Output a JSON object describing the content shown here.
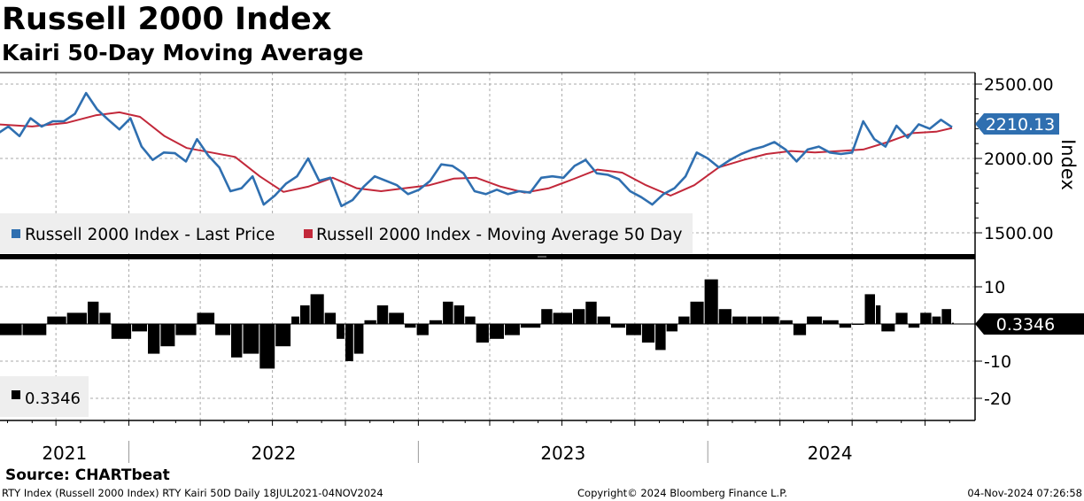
{
  "header": {
    "title": "Russell 2000 Index",
    "subtitle": "Kairi 50-Day Moving Average"
  },
  "footer": {
    "source": "Source: CHARTbeat",
    "left": "RTY Index (Russell 2000 Index) RTY Kairi 50D  Daily 18JUL2021-04NOV2024",
    "middle": "Copyright© 2024 Bloomberg Finance L.P.",
    "right": "04-Nov-2024 07:26:58"
  },
  "chart_data": [
    {
      "type": "line",
      "panel": "price",
      "ylabel": "Index",
      "ylim": [
        1500,
        2500
      ],
      "yticks": [
        "2500.00",
        "2000.00",
        "1500.00"
      ],
      "x_start": "2021-07-18",
      "x_end": "2024-11-04",
      "x_ticks": [
        "2021",
        "2022",
        "2023",
        "2024"
      ],
      "legend_position": "bottom-left",
      "series": [
        {
          "name": "Russell 2000 Index - Last Price",
          "color": "#2f6fb0",
          "last_value": "2210.13",
          "points": [
            [
              "2021-07-19",
              2165
            ],
            [
              "2021-08-02",
              2215
            ],
            [
              "2021-08-16",
              2150
            ],
            [
              "2021-08-30",
              2270
            ],
            [
              "2021-09-13",
              2215
            ],
            [
              "2021-09-27",
              2250
            ],
            [
              "2021-10-11",
              2250
            ],
            [
              "2021-10-25",
              2300
            ],
            [
              "2021-11-08",
              2440
            ],
            [
              "2021-11-22",
              2330
            ],
            [
              "2021-12-06",
              2260
            ],
            [
              "2021-12-20",
              2195
            ],
            [
              "2022-01-03",
              2270
            ],
            [
              "2022-01-17",
              2080
            ],
            [
              "2022-01-31",
              1990
            ],
            [
              "2022-02-14",
              2040
            ],
            [
              "2022-02-28",
              2035
            ],
            [
              "2022-03-14",
              1980
            ],
            [
              "2022-03-28",
              2130
            ],
            [
              "2022-04-11",
              2020
            ],
            [
              "2022-04-25",
              1940
            ],
            [
              "2022-05-09",
              1780
            ],
            [
              "2022-05-23",
              1800
            ],
            [
              "2022-06-06",
              1880
            ],
            [
              "2022-06-20",
              1690
            ],
            [
              "2022-07-04",
              1750
            ],
            [
              "2022-07-18",
              1830
            ],
            [
              "2022-08-01",
              1880
            ],
            [
              "2022-08-15",
              2000
            ],
            [
              "2022-08-29",
              1850
            ],
            [
              "2022-09-12",
              1870
            ],
            [
              "2022-09-26",
              1680
            ],
            [
              "2022-10-10",
              1720
            ],
            [
              "2022-10-24",
              1810
            ],
            [
              "2022-11-07",
              1880
            ],
            [
              "2022-11-21",
              1850
            ],
            [
              "2022-12-05",
              1820
            ],
            [
              "2022-12-19",
              1760
            ],
            [
              "2023-01-02",
              1790
            ],
            [
              "2023-01-16",
              1850
            ],
            [
              "2023-01-30",
              1960
            ],
            [
              "2023-02-13",
              1950
            ],
            [
              "2023-02-27",
              1900
            ],
            [
              "2023-03-13",
              1780
            ],
            [
              "2023-03-27",
              1760
            ],
            [
              "2023-04-10",
              1790
            ],
            [
              "2023-04-24",
              1760
            ],
            [
              "2023-05-08",
              1780
            ],
            [
              "2023-05-22",
              1770
            ],
            [
              "2023-06-05",
              1870
            ],
            [
              "2023-06-19",
              1880
            ],
            [
              "2023-07-03",
              1870
            ],
            [
              "2023-07-17",
              1950
            ],
            [
              "2023-07-31",
              1990
            ],
            [
              "2023-08-14",
              1900
            ],
            [
              "2023-08-28",
              1890
            ],
            [
              "2023-09-11",
              1860
            ],
            [
              "2023-09-25",
              1780
            ],
            [
              "2023-10-09",
              1740
            ],
            [
              "2023-10-23",
              1690
            ],
            [
              "2023-11-06",
              1760
            ],
            [
              "2023-11-20",
              1800
            ],
            [
              "2023-12-04",
              1880
            ],
            [
              "2023-12-18",
              2040
            ],
            [
              "2024-01-01",
              2000
            ],
            [
              "2024-01-15",
              1940
            ],
            [
              "2024-01-29",
              1990
            ],
            [
              "2024-02-12",
              2030
            ],
            [
              "2024-02-26",
              2060
            ],
            [
              "2024-03-11",
              2080
            ],
            [
              "2024-03-25",
              2110
            ],
            [
              "2024-04-08",
              2060
            ],
            [
              "2024-04-22",
              1980
            ],
            [
              "2024-05-06",
              2060
            ],
            [
              "2024-05-20",
              2080
            ],
            [
              "2024-06-03",
              2040
            ],
            [
              "2024-06-17",
              2030
            ],
            [
              "2024-07-01",
              2040
            ],
            [
              "2024-07-15",
              2250
            ],
            [
              "2024-07-29",
              2130
            ],
            [
              "2024-08-12",
              2080
            ],
            [
              "2024-08-26",
              2220
            ],
            [
              "2024-09-09",
              2140
            ],
            [
              "2024-09-23",
              2230
            ],
            [
              "2024-10-07",
              2200
            ],
            [
              "2024-10-21",
              2260
            ],
            [
              "2024-11-04",
              2210
            ]
          ]
        },
        {
          "name": "Russell 2000 Index - Moving Average 50 Day",
          "color": "#c2283a",
          "points": [
            [
              "2021-07-19",
              2230
            ],
            [
              "2021-09-01",
              2215
            ],
            [
              "2021-10-15",
              2240
            ],
            [
              "2021-11-20",
              2290
            ],
            [
              "2021-12-20",
              2310
            ],
            [
              "2022-01-15",
              2280
            ],
            [
              "2022-02-15",
              2150
            ],
            [
              "2022-03-15",
              2070
            ],
            [
              "2022-04-15",
              2040
            ],
            [
              "2022-05-15",
              2010
            ],
            [
              "2022-06-15",
              1880
            ],
            [
              "2022-07-15",
              1775
            ],
            [
              "2022-08-15",
              1810
            ],
            [
              "2022-09-15",
              1870
            ],
            [
              "2022-10-15",
              1800
            ],
            [
              "2022-11-15",
              1780
            ],
            [
              "2022-12-15",
              1800
            ],
            [
              "2023-01-15",
              1820
            ],
            [
              "2023-02-15",
              1865
            ],
            [
              "2023-03-15",
              1870
            ],
            [
              "2023-04-15",
              1810
            ],
            [
              "2023-05-15",
              1770
            ],
            [
              "2023-06-15",
              1800
            ],
            [
              "2023-07-15",
              1860
            ],
            [
              "2023-08-15",
              1925
            ],
            [
              "2023-09-15",
              1905
            ],
            [
              "2023-10-15",
              1820
            ],
            [
              "2023-11-15",
              1750
            ],
            [
              "2023-12-15",
              1820
            ],
            [
              "2024-01-15",
              1940
            ],
            [
              "2024-02-15",
              1990
            ],
            [
              "2024-03-15",
              2030
            ],
            [
              "2024-04-15",
              2050
            ],
            [
              "2024-05-15",
              2040
            ],
            [
              "2024-06-15",
              2050
            ],
            [
              "2024-07-15",
              2060
            ],
            [
              "2024-08-15",
              2110
            ],
            [
              "2024-09-15",
              2170
            ],
            [
              "2024-10-15",
              2180
            ],
            [
              "2024-11-04",
              2205
            ]
          ]
        }
      ]
    },
    {
      "type": "bar",
      "panel": "kairi",
      "ylim": [
        -25,
        15
      ],
      "yticks": [
        "10",
        "-10",
        "-20"
      ],
      "x_start": "2021-07-18",
      "x_end": "2024-11-04",
      "color": "#000000",
      "legend_position": "bottom-left",
      "series": [
        {
          "name": "0.3346",
          "last_value": "0.3346",
          "points": [
            [
              "2021-07-19",
              -3
            ],
            [
              "2021-08-20",
              -3
            ],
            [
              "2021-09-20",
              2
            ],
            [
              "2021-10-15",
              3
            ],
            [
              "2021-11-10",
              6
            ],
            [
              "2021-11-25",
              3
            ],
            [
              "2021-12-10",
              -4
            ],
            [
              "2022-01-05",
              -2
            ],
            [
              "2022-01-25",
              -8
            ],
            [
              "2022-02-10",
              -6
            ],
            [
              "2022-03-01",
              -3
            ],
            [
              "2022-03-28",
              3
            ],
            [
              "2022-04-20",
              -3
            ],
            [
              "2022-05-10",
              -9
            ],
            [
              "2022-05-25",
              -8
            ],
            [
              "2022-06-15",
              -12
            ],
            [
              "2022-07-05",
              -6
            ],
            [
              "2022-07-25",
              2
            ],
            [
              "2022-08-05",
              5
            ],
            [
              "2022-08-18",
              8
            ],
            [
              "2022-09-05",
              3
            ],
            [
              "2022-09-20",
              -4
            ],
            [
              "2022-10-01",
              -10
            ],
            [
              "2022-10-12",
              -8
            ],
            [
              "2022-10-25",
              1
            ],
            [
              "2022-11-10",
              5
            ],
            [
              "2022-11-25",
              3
            ],
            [
              "2022-12-15",
              -1
            ],
            [
              "2022-12-30",
              -3
            ],
            [
              "2023-01-15",
              1
            ],
            [
              "2023-02-01",
              6
            ],
            [
              "2023-02-15",
              5
            ],
            [
              "2023-03-01",
              2
            ],
            [
              "2023-03-15",
              -5
            ],
            [
              "2023-04-01",
              -4
            ],
            [
              "2023-04-20",
              -3
            ],
            [
              "2023-05-10",
              -1
            ],
            [
              "2023-06-05",
              4
            ],
            [
              "2023-06-20",
              3
            ],
            [
              "2023-07-15",
              4
            ],
            [
              "2023-07-31",
              6
            ],
            [
              "2023-08-15",
              2
            ],
            [
              "2023-09-01",
              -1
            ],
            [
              "2023-09-20",
              -3
            ],
            [
              "2023-10-10",
              -5
            ],
            [
              "2023-10-27",
              -7
            ],
            [
              "2023-11-10",
              -2
            ],
            [
              "2023-11-25",
              2
            ],
            [
              "2023-12-10",
              6
            ],
            [
              "2023-12-28",
              12
            ],
            [
              "2024-01-15",
              4
            ],
            [
              "2024-02-01",
              2
            ],
            [
              "2024-02-20",
              2
            ],
            [
              "2024-03-10",
              2
            ],
            [
              "2024-04-01",
              1
            ],
            [
              "2024-04-18",
              -3
            ],
            [
              "2024-05-05",
              2
            ],
            [
              "2024-05-25",
              1
            ],
            [
              "2024-06-15",
              -1
            ],
            [
              "2024-07-01",
              0
            ],
            [
              "2024-07-17",
              8
            ],
            [
              "2024-07-31",
              5
            ],
            [
              "2024-08-07",
              -2
            ],
            [
              "2024-08-25",
              3
            ],
            [
              "2024-09-10",
              -1
            ],
            [
              "2024-09-25",
              3
            ],
            [
              "2024-10-10",
              2
            ],
            [
              "2024-10-22",
              4
            ],
            [
              "2024-11-04",
              0.3346
            ]
          ]
        }
      ]
    }
  ]
}
